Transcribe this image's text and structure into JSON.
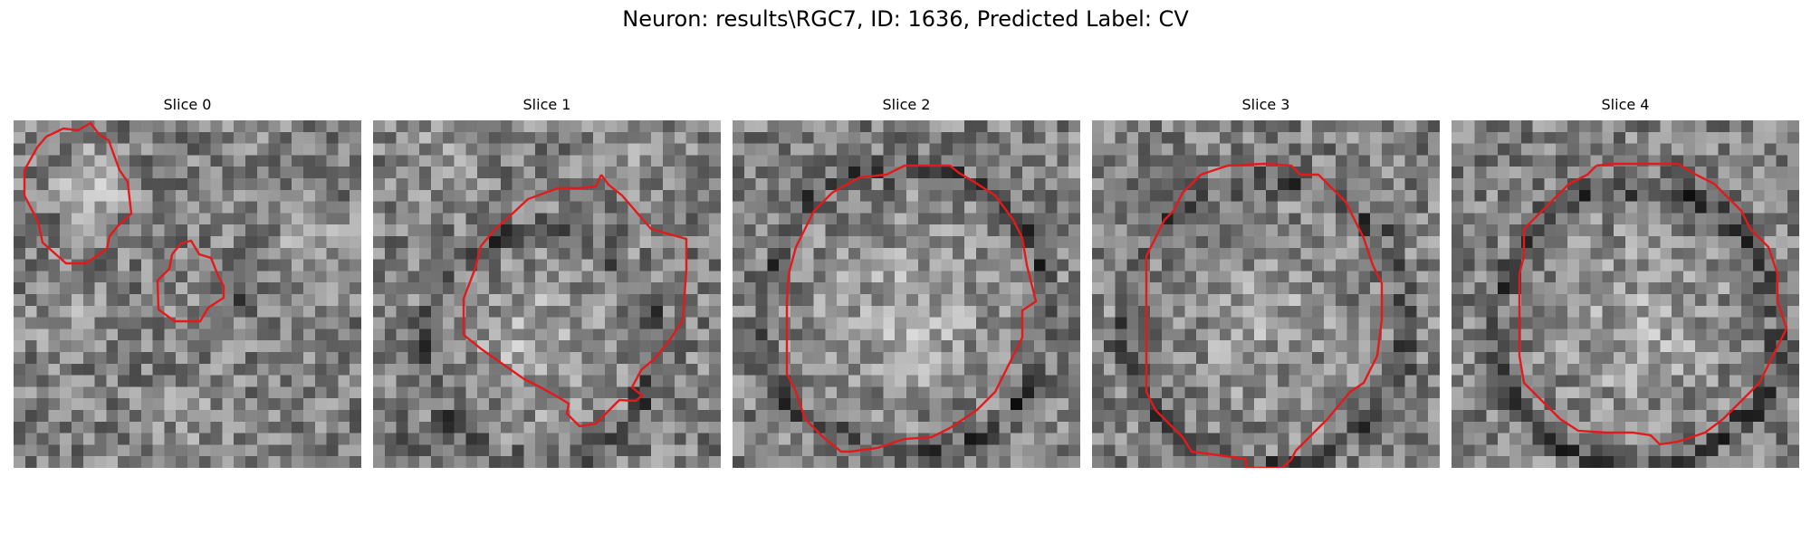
{
  "figure": {
    "title": "Neuron: results\\RGC7, ID: 1636, Predicted Label: CV",
    "contour_color": "#e31a1c"
  },
  "slices": [
    {
      "title": "Slice 0"
    },
    {
      "title": "Slice 1"
    },
    {
      "title": "Slice 2"
    },
    {
      "title": "Slice 3"
    },
    {
      "title": "Slice 4"
    }
  ]
}
